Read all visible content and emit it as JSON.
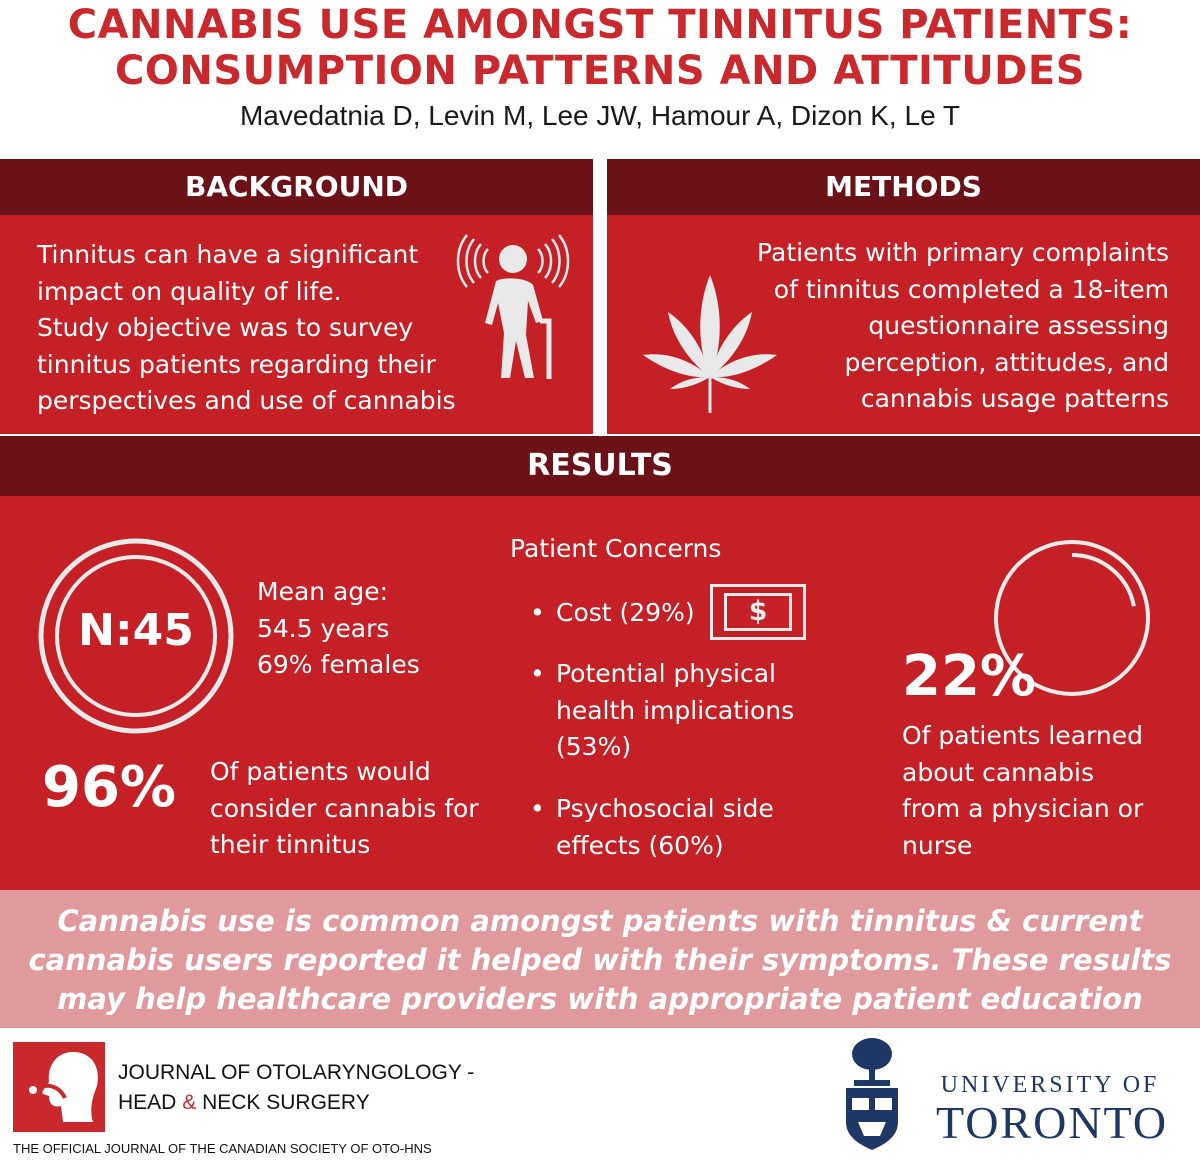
{
  "header": {
    "title_line1": "CANNABIS USE AMONGST TINNITUS PATIENTS:",
    "title_line2": "CONSUMPTION PATTERNS AND ATTITUDES",
    "authors": "Mavedatnia D, Levin M, Lee JW, Hamour A, Dizon K, Le T"
  },
  "background": {
    "heading": "BACKGROUND",
    "lines": [
      "Tinnitus can have a significant",
      "impact on quality of life.",
      "Study objective was to survey",
      "tinnitus patients regarding their",
      "perspectives and use of cannabis"
    ],
    "icon": "elderly-person-with-tinnitus-icon"
  },
  "methods": {
    "heading": "METHODS",
    "lines": [
      "Patients with primary complaints",
      "of tinnitus completed a 18-item",
      "questionnaire assessing",
      "perception, attitudes, and",
      "cannabis usage patterns"
    ],
    "icon": "cannabis-leaf-icon"
  },
  "results": {
    "heading": "RESULTS",
    "sample": {
      "n_label": "N:45",
      "mean_age_label": "Mean age:",
      "mean_age_value": "54.5 years",
      "females": "69% females"
    },
    "consider": {
      "percent": "96%",
      "lines": [
        "Of patients would",
        "consider cannabis for",
        "their tinnitus"
      ]
    },
    "concerns": {
      "title": "Patient Concerns",
      "items": [
        {
          "lines": [
            "Cost (29%)"
          ]
        },
        {
          "lines": [
            "Potential physical",
            "health implications",
            "(53%)"
          ]
        },
        {
          "lines": [
            "Psychosocial side",
            "effects (60%)"
          ]
        }
      ],
      "cost_icon": "dollar-bill-icon",
      "dollar_sign": "$"
    },
    "learned": {
      "percent": "22%",
      "fraction": 0.22,
      "lines": [
        "Of patients learned",
        "about cannabis",
        "from a physician or",
        "nurse"
      ]
    }
  },
  "conclusion": {
    "lines": [
      "Cannabis use is common amongst patients with tinnitus & current",
      "cannabis users reported it helped with their symptoms. These results",
      "may help healthcare providers with appropriate patient education"
    ]
  },
  "footer": {
    "journal_line1": "JOURNAL OF OTOLARYNGOLOGY -",
    "journal_line2_a": "HEAD",
    "journal_line2_amp": "&",
    "journal_line2_b": "NECK SURGERY",
    "journal_sub": "THE OFFICIAL JOURNAL OF THE CANADIAN SOCIETY OF OTO-HNS",
    "university_top": "UNIVERSITY OF",
    "university_bottom": "TORONTO"
  },
  "colors": {
    "title_red": "#c9282d",
    "panel_red": "#c42026",
    "band_dark": "#6b1219",
    "conclusion_pink": "#e0999c",
    "uoft_navy": "#1e3765"
  }
}
